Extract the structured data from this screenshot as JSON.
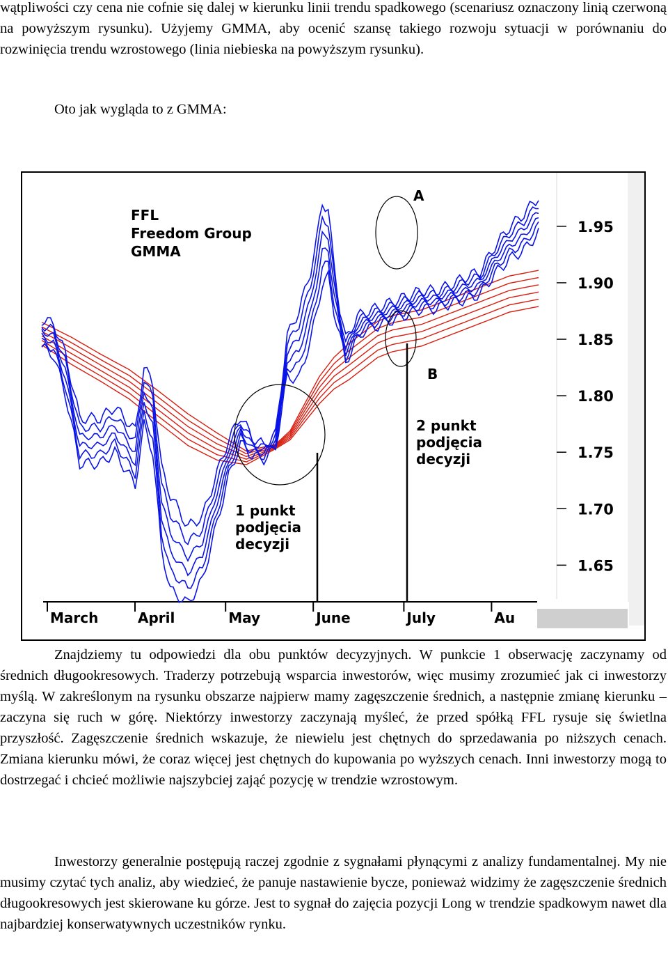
{
  "text": {
    "top_paragraph": "wątpliwości czy cena nie cofnie się dalej w kierunku linii trendu spadkowego (scenariusz oznaczony linią czerwoną na powyższym rysunku). Użyjemy GMMA, aby ocenić szansę takiego rozwoju sytuacji w porównaniu do rozwinięcia trendu wzrostowego (linia niebieska na powyższym rysunku).",
    "intro": "Oto jak wygląda to z GMMA:",
    "find_paragraph": "Znajdziemy tu odpowiedzi dla obu punktów decyzyjnych. W punkcie 1 obserwację zaczynamy od średnich długookresowych. Traderzy potrzebują wsparcia inwestorów, więc musimy zrozumieć jak ci inwestorzy myślą. W zakreślonym na rysunku obszarze najpierw mamy zagęszczenie średnich, a następnie zmianę kierunku – zaczyna się ruch w górę. Niektórzy inwestorzy zaczynają myśleć, że przed spółką FFL rysuje się świetlna przyszłość. Zagęszczenie średnich wskazuje, że niewielu jest chętnych do sprzedawania po niższych cenach. Zmiana kierunku mówi, że coraz więcej jest chętnych do kupowania po wyższych cenach. Inni inwestorzy mogą to dostrzegać i chcieć możliwie najszybciej zająć pozycję w trendzie wzrostowym.",
    "investors_paragraph": "Inwestorzy generalnie postępują raczej zgodnie z sygnałami płynącymi z analizy fundamentalnej. My nie musimy czytać tych analiz, aby wiedzieć, że panuje nastawienie bycze, ponieważ widzimy że zagęszczenie średnich długookresowych jest skierowane ku górze. Jest to sygnał do zajęcia pozycji Long w trendzie spadkowym nawet dla najbardziej konserwatywnych uczestników rynku."
  },
  "chart_data": {
    "type": "line",
    "title_lines": [
      "FFL",
      "Freedom Group",
      "GMMA"
    ],
    "x_tick_labels": [
      "March",
      "April",
      "May",
      "June",
      "July",
      "Au"
    ],
    "y_ticks": [
      1.95,
      1.9,
      1.85,
      1.8,
      1.75,
      1.7,
      1.65
    ],
    "ylim": [
      1.62,
      1.99
    ],
    "xlim": [
      0,
      170
    ],
    "annotations": {
      "A": "A",
      "B": "B",
      "point1": [
        "1 punkt",
        "podjęcia",
        "decyzji"
      ],
      "point2": [
        "2 punkt",
        "podjęcia",
        "decyzji"
      ]
    },
    "colors": {
      "short_term": "#0a14e6",
      "long_term": "#d81e10",
      "axis": "#000000"
    },
    "short_term_anchor": {
      "x": [
        0,
        4,
        8,
        13,
        20,
        25,
        32,
        35,
        38,
        41,
        44,
        50,
        55,
        60,
        64,
        68,
        72,
        76,
        80,
        84,
        88,
        92,
        94,
        96,
        98,
        100,
        102,
        104,
        106,
        108,
        110,
        115,
        120,
        125,
        130,
        135,
        140,
        145,
        150,
        155,
        160,
        165,
        170
      ],
      "mid": [
        1.855,
        1.85,
        1.82,
        1.76,
        1.76,
        1.77,
        1.745,
        1.8,
        1.78,
        1.7,
        1.67,
        1.65,
        1.665,
        1.71,
        1.745,
        1.77,
        1.755,
        1.75,
        1.76,
        1.835,
        1.845,
        1.88,
        1.905,
        1.935,
        1.935,
        1.895,
        1.865,
        1.84,
        1.85,
        1.86,
        1.865,
        1.87,
        1.875,
        1.88,
        1.885,
        1.885,
        1.89,
        1.895,
        1.9,
        1.92,
        1.935,
        1.945,
        1.96
      ],
      "sp": [
        0.012,
        0.014,
        0.018,
        0.02,
        0.02,
        0.02,
        0.024,
        0.026,
        0.03,
        0.036,
        0.042,
        0.034,
        0.028,
        0.022,
        0.016,
        0.012,
        0.008,
        0.006,
        0.006,
        0.018,
        0.03,
        0.03,
        0.032,
        0.036,
        0.03,
        0.02,
        0.012,
        0.01,
        0.01,
        0.01,
        0.008,
        0.008,
        0.008,
        0.008,
        0.008,
        0.008,
        0.008,
        0.01,
        0.01,
        0.012,
        0.014,
        0.016,
        0.016
      ]
    },
    "long_term_anchor": {
      "x": [
        0,
        10,
        20,
        30,
        40,
        50,
        60,
        70,
        80,
        85,
        90,
        95,
        100,
        105,
        110,
        115,
        120,
        130,
        140,
        150,
        160,
        170
      ],
      "mid": [
        1.855,
        1.84,
        1.825,
        1.81,
        1.79,
        1.77,
        1.755,
        1.745,
        1.755,
        1.765,
        1.785,
        1.805,
        1.82,
        1.83,
        1.84,
        1.85,
        1.855,
        1.86,
        1.87,
        1.88,
        1.89,
        1.895
      ],
      "sp": [
        0.01,
        0.012,
        0.012,
        0.013,
        0.014,
        0.014,
        0.012,
        0.006,
        0.002,
        0.004,
        0.008,
        0.012,
        0.014,
        0.016,
        0.016,
        0.016,
        0.016,
        0.016,
        0.016,
        0.016,
        0.016,
        0.016
      ]
    },
    "short_term_count": 6,
    "long_term_count": 6
  }
}
